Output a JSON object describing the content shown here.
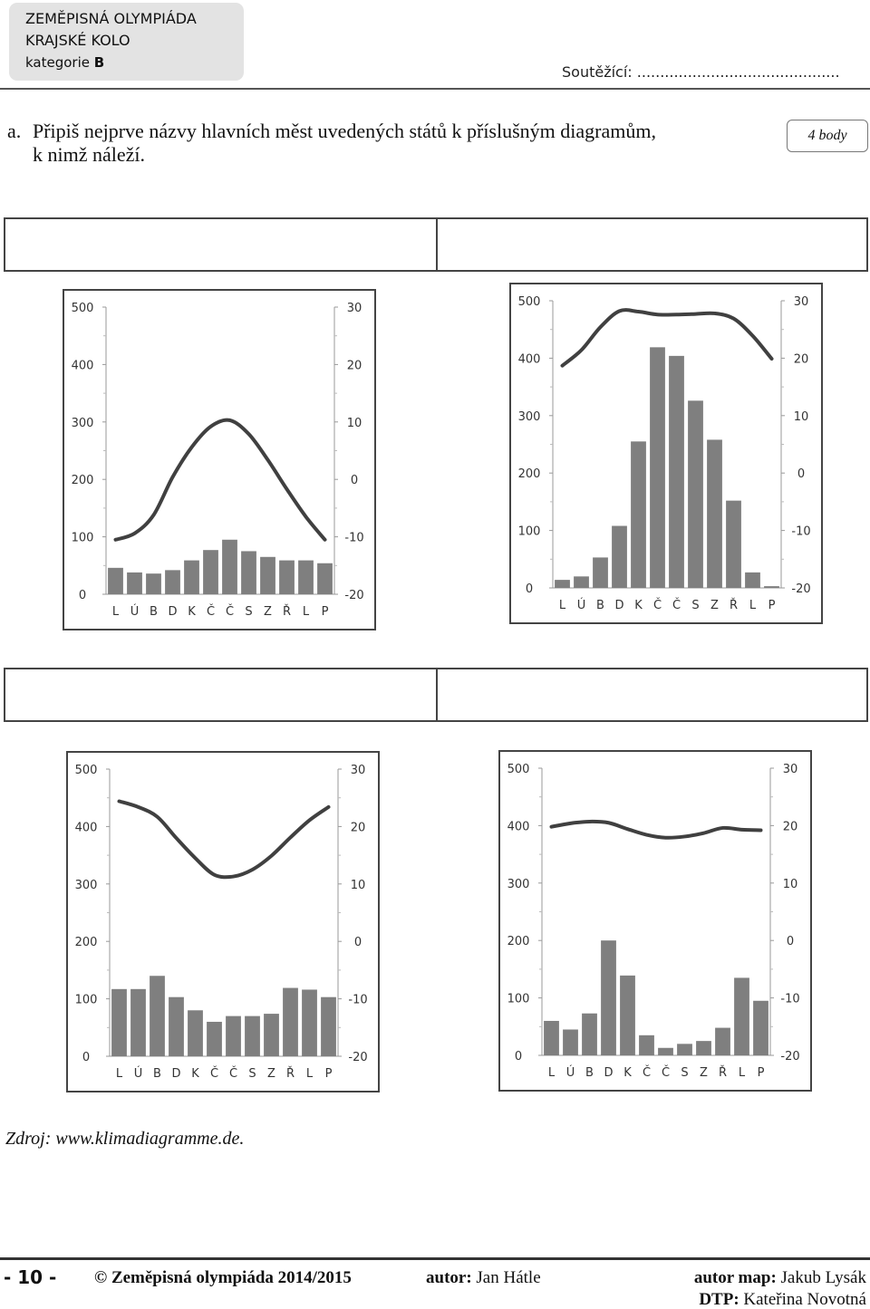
{
  "header": {
    "line1": "ZEMĚPISNÁ OLYMPIÁDA",
    "line2": "KRAJSKÉ KOLO",
    "category_label": "kategorie",
    "category_value": "B",
    "contestant": "Soutěžící: ............................................"
  },
  "task": {
    "letter": "a.",
    "text_line1": "Připiš nejprve názvy hlavních měst uvedených států k příslušným diagramům,",
    "text_line2": "k nimž náleží.",
    "points": "4 body"
  },
  "colors": {
    "bar": "#7f7f7f",
    "line": "#404040",
    "frame": "#444444"
  },
  "chart_data": [
    {
      "type": "bar",
      "categories": [
        "L",
        "Ú",
        "B",
        "D",
        "K",
        "Č",
        "Č",
        "S",
        "Z",
        "Ř",
        "L",
        "P"
      ],
      "left_ticks": [
        "500",
        "400",
        "300",
        "200",
        "100",
        "0"
      ],
      "right_ticks": [
        "30",
        "20",
        "10",
        "0",
        "-10",
        "-20"
      ],
      "ylim_left": [
        0,
        500
      ],
      "ylim_right": [
        -20,
        30
      ],
      "series": [
        {
          "values": [
            46,
            38,
            36,
            42,
            59,
            77,
            95,
            75,
            65,
            59,
            59,
            54
          ]
        },
        {
          "type": "line",
          "values": [
            -10.5,
            -9.4,
            -6.2,
            0.4,
            5.6,
            9.2,
            10.3,
            7.9,
            3.4,
            -1.7,
            -6.5,
            -10.5
          ]
        }
      ]
    },
    {
      "type": "bar",
      "categories": [
        "L",
        "Ú",
        "B",
        "D",
        "K",
        "Č",
        "Č",
        "S",
        "Z",
        "Ř",
        "L",
        "P"
      ],
      "left_ticks": [
        "500",
        "400",
        "300",
        "200",
        "100",
        "0"
      ],
      "right_ticks": [
        "30",
        "20",
        "10",
        "0",
        "-10",
        "-20"
      ],
      "ylim_left": [
        0,
        500
      ],
      "ylim_right": [
        -20,
        30
      ],
      "series": [
        {
          "values": [
            14,
            20,
            53,
            108,
            255,
            419,
            404,
            326,
            258,
            152,
            27,
            3
          ]
        },
        {
          "type": "line",
          "values": [
            18.7,
            21.4,
            25.4,
            28.2,
            28.1,
            27.6,
            27.6,
            27.7,
            27.8,
            26.9,
            23.9,
            19.9
          ]
        }
      ]
    },
    {
      "type": "bar",
      "categories": [
        "L",
        "Ú",
        "B",
        "D",
        "K",
        "Č",
        "Č",
        "S",
        "Z",
        "Ř",
        "L",
        "P"
      ],
      "left_ticks": [
        "500",
        "400",
        "300",
        "200",
        "100",
        "0"
      ],
      "right_ticks": [
        "30",
        "20",
        "10",
        "0",
        "-10",
        "-20"
      ],
      "ylim_left": [
        0,
        500
      ],
      "ylim_right": [
        -20,
        30
      ],
      "series": [
        {
          "values": [
            117,
            117,
            140,
            103,
            80,
            60,
            70,
            70,
            74,
            119,
            116,
            103
          ]
        },
        {
          "type": "line",
          "values": [
            24.4,
            23.4,
            21.7,
            18.0,
            14.5,
            11.6,
            11.3,
            12.5,
            14.9,
            18.1,
            21.1,
            23.4
          ]
        }
      ]
    },
    {
      "type": "bar",
      "categories": [
        "L",
        "Ú",
        "B",
        "D",
        "K",
        "Č",
        "Č",
        "S",
        "Z",
        "Ř",
        "L",
        "P"
      ],
      "left_ticks": [
        "500",
        "400",
        "300",
        "200",
        "100",
        "0"
      ],
      "right_ticks": [
        "30",
        "20",
        "10",
        "0",
        "-10",
        "-20"
      ],
      "ylim_left": [
        0,
        500
      ],
      "ylim_right": [
        -20,
        30
      ],
      "series": [
        {
          "values": [
            60,
            45,
            73,
            200,
            139,
            35,
            13,
            20,
            25,
            48,
            135,
            95
          ]
        },
        {
          "type": "line",
          "values": [
            19.8,
            20.4,
            20.7,
            20.5,
            19.4,
            18.4,
            17.9,
            18.1,
            18.7,
            19.6,
            19.3,
            19.2
          ]
        }
      ]
    }
  ],
  "source": "Zdroj: www.klimadiagramme.de.",
  "footer": {
    "page": "- 10 -",
    "copyright": "© Zeměpisná olympiáda 2014/2015",
    "author_label": "autor:",
    "author_name": "Jan Hátle",
    "maps_label": "autor map:",
    "maps_name": "Jakub Lysák",
    "dtp_label": "DTP:",
    "dtp_name": "Kateřina Novotná"
  }
}
